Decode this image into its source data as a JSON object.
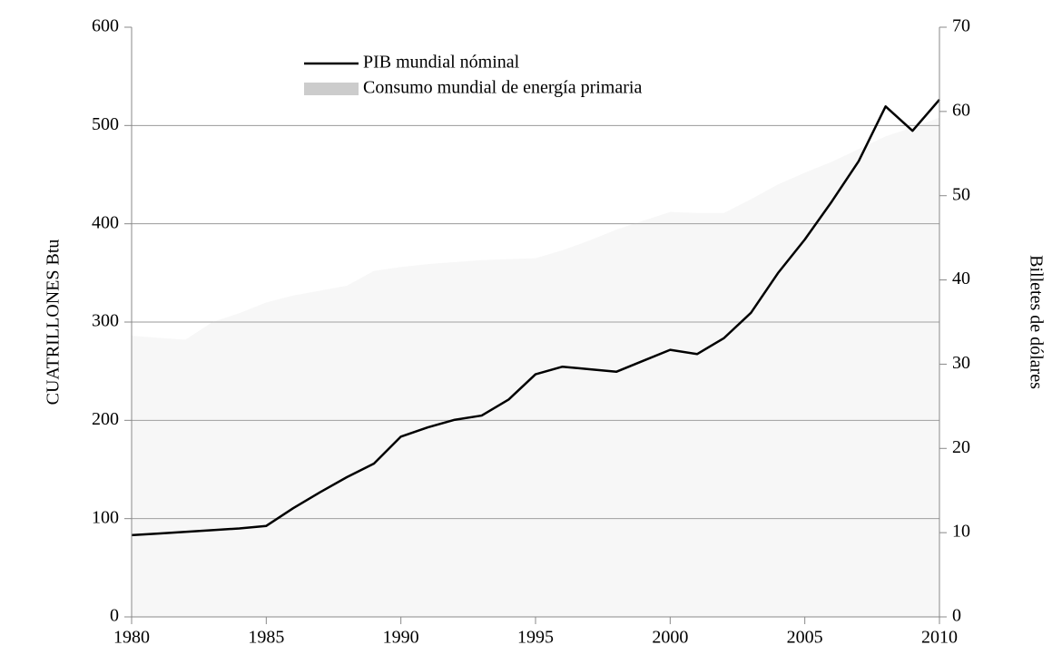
{
  "chart_data": {
    "type": "line",
    "y_label": "CUATRILLONES Btu",
    "y2_label": "Billetes de dólares",
    "x": [
      1980,
      1981,
      1982,
      1983,
      1984,
      1985,
      1986,
      1987,
      1988,
      1989,
      1990,
      1991,
      1992,
      1993,
      1994,
      1995,
      1996,
      1997,
      1998,
      1999,
      2000,
      2001,
      2002,
      2003,
      2004,
      2005,
      2006,
      2007,
      2008,
      2009,
      2010
    ],
    "series": [
      {
        "name": "Consumo mundial de energía primaria",
        "kind": "area",
        "color": "#cccccc",
        "values": [
          286,
          284,
          282,
          300,
          309,
          320,
          327,
          332,
          337,
          352,
          356,
          359,
          361,
          363,
          364,
          365,
          373,
          383,
          394,
          403,
          412,
          411,
          411,
          425,
          440,
          452,
          463,
          476,
          489,
          498,
          508
        ]
      },
      {
        "name": "PIB mundial nóminal",
        "kind": "line",
        "color": "#000000",
        "axis": "y2",
        "values": [
          9.7,
          9.9,
          10.1,
          10.3,
          10.5,
          10.8,
          12.9,
          14.8,
          16.6,
          18.2,
          21.4,
          22.5,
          23.4,
          23.9,
          25.8,
          28.8,
          29.7,
          29.4,
          29.1,
          30.4,
          31.7,
          31.2,
          33.1,
          36.1,
          40.8,
          44.8,
          49.3,
          54.1,
          60.6,
          57.7,
          61.4
        ]
      }
    ],
    "xlim": [
      1980,
      2010
    ],
    "xticks": [
      1980,
      1985,
      1990,
      1995,
      2000,
      2005,
      2010
    ],
    "ylim": [
      0,
      600
    ],
    "yticks": [
      0,
      100,
      200,
      300,
      400,
      500,
      600
    ],
    "y2lim": [
      0,
      70
    ],
    "y2ticks": [
      0,
      10,
      20,
      30,
      40,
      50,
      60,
      70
    ],
    "grid": true
  }
}
